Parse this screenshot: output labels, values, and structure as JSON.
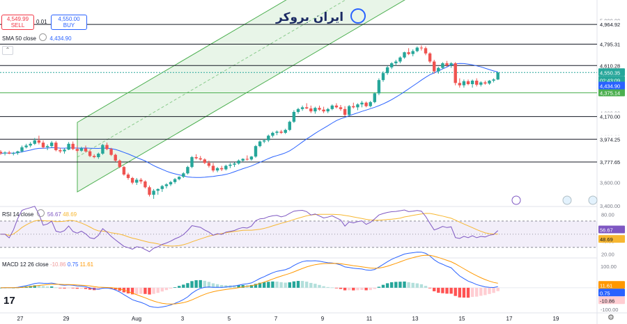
{
  "trade": {
    "sell_price": "4,549.99",
    "sell_label": "SELL",
    "spread": "0.01",
    "buy_price": "4,550.00",
    "buy_label": "BUY"
  },
  "logo_text": "ایران بروکر",
  "sma_legend": {
    "label": "SMA 50 close",
    "value": "4,434.90"
  },
  "rsi_legend": {
    "label": "RSI 14 close",
    "value": "56.67",
    "value2": "48.69"
  },
  "macd_legend": {
    "label": "MACD 12 26 close",
    "hist": "-10.86",
    "macd": "0.75",
    "signal": "11.61"
  },
  "colors": {
    "up": "#26a69a",
    "down": "#ef5350",
    "sma": "#2962ff",
    "channel": "#4caf50",
    "rsi": "#7e57c2",
    "rsi_ma": "#f7b731",
    "macd": "#2962ff",
    "signal": "#ff9800"
  },
  "chart_data": [
    {
      "type": "candlestick",
      "title": "",
      "x_ticks": [
        "27",
        "29",
        "Aug",
        "3",
        "5",
        "7",
        "9",
        "11",
        "13",
        "15",
        "17",
        "19"
      ],
      "y_ticks": [
        3400,
        3600,
        3800,
        4000,
        4200,
        4400,
        4600,
        4800,
        5000
      ],
      "y_tick_labels": [
        "3,400.00",
        "3,600.00",
        "3,800.00",
        "4,000.00",
        "4,200.00",
        "4,400.00",
        "4,600.00",
        "4,800.00",
        "5,000.00"
      ],
      "ylim": [
        3400,
        5080
      ],
      "horizontal_levels": [
        {
          "value": 4964.92,
          "label": "4,964.92"
        },
        {
          "value": 4795.31,
          "label": "4,795.31"
        },
        {
          "value": 4610.28,
          "label": "4,610.28"
        },
        {
          "value": 4170.0,
          "label": "4,170.00"
        },
        {
          "value": 3974.25,
          "label": "3,974.25"
        },
        {
          "value": 3777.65,
          "label": "3,777.65"
        }
      ],
      "support_level": {
        "value": 4375.14,
        "label": "4,375.14"
      },
      "current_price": {
        "value": 4550.35,
        "label": "4,550.35",
        "countdown": "02:43:09"
      },
      "sma_value": {
        "value": 4434.9,
        "label": "4,434.90"
      },
      "candles": [
        {
          "o": 3866,
          "h": 3880,
          "l": 3840,
          "c": 3852
        },
        {
          "o": 3852,
          "h": 3870,
          "l": 3835,
          "c": 3860
        },
        {
          "o": 3860,
          "h": 3875,
          "l": 3845,
          "c": 3850
        },
        {
          "o": 3850,
          "h": 3865,
          "l": 3835,
          "c": 3855
        },
        {
          "o": 3855,
          "h": 3875,
          "l": 3840,
          "c": 3870
        },
        {
          "o": 3870,
          "h": 3920,
          "l": 3860,
          "c": 3905
        },
        {
          "o": 3905,
          "h": 3935,
          "l": 3895,
          "c": 3920
        },
        {
          "o": 3920,
          "h": 3950,
          "l": 3905,
          "c": 3935
        },
        {
          "o": 3935,
          "h": 3985,
          "l": 3925,
          "c": 3965
        },
        {
          "o": 3965,
          "h": 4005,
          "l": 3930,
          "c": 3945
        },
        {
          "o": 3945,
          "h": 3965,
          "l": 3895,
          "c": 3905
        },
        {
          "o": 3905,
          "h": 3930,
          "l": 3880,
          "c": 3915
        },
        {
          "o": 3915,
          "h": 3960,
          "l": 3900,
          "c": 3945
        },
        {
          "o": 3945,
          "h": 3960,
          "l": 3870,
          "c": 3880
        },
        {
          "o": 3880,
          "h": 3900,
          "l": 3855,
          "c": 3870
        },
        {
          "o": 3870,
          "h": 3895,
          "l": 3850,
          "c": 3885
        },
        {
          "o": 3885,
          "h": 3950,
          "l": 3880,
          "c": 3935
        },
        {
          "o": 3935,
          "h": 3955,
          "l": 3880,
          "c": 3890
        },
        {
          "o": 3890,
          "h": 3920,
          "l": 3860,
          "c": 3875
        },
        {
          "o": 3875,
          "h": 3910,
          "l": 3865,
          "c": 3895
        },
        {
          "o": 3895,
          "h": 3920,
          "l": 3860,
          "c": 3870
        },
        {
          "o": 3870,
          "h": 3885,
          "l": 3820,
          "c": 3830
        },
        {
          "o": 3830,
          "h": 3845,
          "l": 3810,
          "c": 3820
        },
        {
          "o": 3820,
          "h": 3860,
          "l": 3805,
          "c": 3850
        },
        {
          "o": 3850,
          "h": 3935,
          "l": 3840,
          "c": 3925
        },
        {
          "o": 3925,
          "h": 3945,
          "l": 3880,
          "c": 3890
        },
        {
          "o": 3890,
          "h": 3900,
          "l": 3830,
          "c": 3840
        },
        {
          "o": 3840,
          "h": 3850,
          "l": 3780,
          "c": 3790
        },
        {
          "o": 3790,
          "h": 3800,
          "l": 3725,
          "c": 3735
        },
        {
          "o": 3735,
          "h": 3745,
          "l": 3660,
          "c": 3670
        },
        {
          "o": 3670,
          "h": 3685,
          "l": 3625,
          "c": 3640
        },
        {
          "o": 3640,
          "h": 3650,
          "l": 3585,
          "c": 3600
        },
        {
          "o": 3600,
          "h": 3640,
          "l": 3580,
          "c": 3625
        },
        {
          "o": 3625,
          "h": 3640,
          "l": 3590,
          "c": 3610
        },
        {
          "o": 3610,
          "h": 3620,
          "l": 3550,
          "c": 3560
        },
        {
          "o": 3560,
          "h": 3575,
          "l": 3480,
          "c": 3495
        },
        {
          "o": 3495,
          "h": 3545,
          "l": 3460,
          "c": 3530
        },
        {
          "o": 3530,
          "h": 3550,
          "l": 3495,
          "c": 3545
        },
        {
          "o": 3545,
          "h": 3580,
          "l": 3520,
          "c": 3570
        },
        {
          "o": 3570,
          "h": 3595,
          "l": 3550,
          "c": 3585
        },
        {
          "o": 3585,
          "h": 3615,
          "l": 3570,
          "c": 3605
        },
        {
          "o": 3605,
          "h": 3640,
          "l": 3590,
          "c": 3630
        },
        {
          "o": 3630,
          "h": 3655,
          "l": 3620,
          "c": 3650
        },
        {
          "o": 3650,
          "h": 3690,
          "l": 3640,
          "c": 3680
        },
        {
          "o": 3680,
          "h": 3745,
          "l": 3670,
          "c": 3735
        },
        {
          "o": 3735,
          "h": 3830,
          "l": 3725,
          "c": 3820
        },
        {
          "o": 3820,
          "h": 3845,
          "l": 3800,
          "c": 3810
        },
        {
          "o": 3810,
          "h": 3830,
          "l": 3790,
          "c": 3800
        },
        {
          "o": 3800,
          "h": 3810,
          "l": 3760,
          "c": 3770
        },
        {
          "o": 3770,
          "h": 3790,
          "l": 3730,
          "c": 3745
        },
        {
          "o": 3745,
          "h": 3770,
          "l": 3690,
          "c": 3705
        },
        {
          "o": 3705,
          "h": 3735,
          "l": 3690,
          "c": 3725
        },
        {
          "o": 3725,
          "h": 3745,
          "l": 3700,
          "c": 3715
        },
        {
          "o": 3715,
          "h": 3755,
          "l": 3705,
          "c": 3745
        },
        {
          "o": 3745,
          "h": 3770,
          "l": 3725,
          "c": 3755
        },
        {
          "o": 3755,
          "h": 3775,
          "l": 3735,
          "c": 3765
        },
        {
          "o": 3765,
          "h": 3800,
          "l": 3755,
          "c": 3790
        },
        {
          "o": 3790,
          "h": 3810,
          "l": 3780,
          "c": 3805
        },
        {
          "o": 3805,
          "h": 3835,
          "l": 3790,
          "c": 3800
        },
        {
          "o": 3800,
          "h": 3830,
          "l": 3790,
          "c": 3825
        },
        {
          "o": 3825,
          "h": 3925,
          "l": 3815,
          "c": 3915
        },
        {
          "o": 3915,
          "h": 3965,
          "l": 3905,
          "c": 3955
        },
        {
          "o": 3955,
          "h": 3975,
          "l": 3940,
          "c": 3965
        },
        {
          "o": 3965,
          "h": 4015,
          "l": 3950,
          "c": 4005
        },
        {
          "o": 4005,
          "h": 4040,
          "l": 3990,
          "c": 4030
        },
        {
          "o": 4030,
          "h": 4050,
          "l": 4010,
          "c": 4040
        },
        {
          "o": 4040,
          "h": 4055,
          "l": 4020,
          "c": 4030
        },
        {
          "o": 4030,
          "h": 4065,
          "l": 4020,
          "c": 4055
        },
        {
          "o": 4055,
          "h": 4135,
          "l": 4045,
          "c": 4125
        },
        {
          "o": 4125,
          "h": 4225,
          "l": 4115,
          "c": 4210
        },
        {
          "o": 4210,
          "h": 4245,
          "l": 4195,
          "c": 4235
        },
        {
          "o": 4235,
          "h": 4265,
          "l": 4220,
          "c": 4250
        },
        {
          "o": 4250,
          "h": 4285,
          "l": 4235,
          "c": 4240
        },
        {
          "o": 4240,
          "h": 4265,
          "l": 4200,
          "c": 4215
        },
        {
          "o": 4215,
          "h": 4255,
          "l": 4195,
          "c": 4245
        },
        {
          "o": 4245,
          "h": 4265,
          "l": 4220,
          "c": 4230
        },
        {
          "o": 4230,
          "h": 4255,
          "l": 4200,
          "c": 4215
        },
        {
          "o": 4215,
          "h": 4245,
          "l": 4200,
          "c": 4235
        },
        {
          "o": 4235,
          "h": 4275,
          "l": 4225,
          "c": 4265
        },
        {
          "o": 4265,
          "h": 4285,
          "l": 4240,
          "c": 4250
        },
        {
          "o": 4250,
          "h": 4270,
          "l": 4220,
          "c": 4235
        },
        {
          "o": 4235,
          "h": 4260,
          "l": 4175,
          "c": 4185
        },
        {
          "o": 4185,
          "h": 4270,
          "l": 4175,
          "c": 4260
        },
        {
          "o": 4260,
          "h": 4290,
          "l": 4240,
          "c": 4250
        },
        {
          "o": 4250,
          "h": 4285,
          "l": 4225,
          "c": 4275
        },
        {
          "o": 4275,
          "h": 4305,
          "l": 4250,
          "c": 4290
        },
        {
          "o": 4290,
          "h": 4300,
          "l": 4250,
          "c": 4260
        },
        {
          "o": 4260,
          "h": 4305,
          "l": 4250,
          "c": 4295
        },
        {
          "o": 4295,
          "h": 4380,
          "l": 4285,
          "c": 4370
        },
        {
          "o": 4370,
          "h": 4500,
          "l": 4355,
          "c": 4485
        },
        {
          "o": 4485,
          "h": 4560,
          "l": 4470,
          "c": 4545
        },
        {
          "o": 4545,
          "h": 4610,
          "l": 4530,
          "c": 4595
        },
        {
          "o": 4595,
          "h": 4640,
          "l": 4580,
          "c": 4630
        },
        {
          "o": 4630,
          "h": 4660,
          "l": 4610,
          "c": 4645
        },
        {
          "o": 4645,
          "h": 4690,
          "l": 4630,
          "c": 4680
        },
        {
          "o": 4680,
          "h": 4730,
          "l": 4670,
          "c": 4725
        },
        {
          "o": 4725,
          "h": 4760,
          "l": 4700,
          "c": 4710
        },
        {
          "o": 4710,
          "h": 4750,
          "l": 4690,
          "c": 4735
        },
        {
          "o": 4735,
          "h": 4775,
          "l": 4725,
          "c": 4765
        },
        {
          "o": 4765,
          "h": 4785,
          "l": 4740,
          "c": 4760
        },
        {
          "o": 4760,
          "h": 4775,
          "l": 4700,
          "c": 4715
        },
        {
          "o": 4715,
          "h": 4725,
          "l": 4630,
          "c": 4645
        },
        {
          "o": 4645,
          "h": 4660,
          "l": 4540,
          "c": 4560
        },
        {
          "o": 4560,
          "h": 4600,
          "l": 4540,
          "c": 4590
        },
        {
          "o": 4590,
          "h": 4640,
          "l": 4580,
          "c": 4630
        },
        {
          "o": 4630,
          "h": 4650,
          "l": 4600,
          "c": 4615
        },
        {
          "o": 4615,
          "h": 4640,
          "l": 4590,
          "c": 4630
        },
        {
          "o": 4630,
          "h": 4640,
          "l": 4440,
          "c": 4460
        },
        {
          "o": 4460,
          "h": 4500,
          "l": 4420,
          "c": 4440
        },
        {
          "o": 4440,
          "h": 4490,
          "l": 4420,
          "c": 4475
        },
        {
          "o": 4475,
          "h": 4490,
          "l": 4440,
          "c": 4450
        },
        {
          "o": 4450,
          "h": 4490,
          "l": 4420,
          "c": 4480
        },
        {
          "o": 4480,
          "h": 4500,
          "l": 4430,
          "c": 4445
        },
        {
          "o": 4445,
          "h": 4475,
          "l": 4430,
          "c": 4465
        },
        {
          "o": 4465,
          "h": 4480,
          "l": 4445,
          "c": 4455
        },
        {
          "o": 4455,
          "h": 4485,
          "l": 4445,
          "c": 4480
        },
        {
          "o": 4480,
          "h": 4500,
          "l": 4465,
          "c": 4490
        },
        {
          "o": 4490,
          "h": 4555,
          "l": 4485,
          "c": 4550
        }
      ]
    },
    {
      "type": "line",
      "title": "RSI 14 close",
      "y_ticks": [
        20,
        40,
        60,
        80
      ],
      "ylim": [
        15,
        90
      ],
      "bands": [
        30,
        50,
        70
      ],
      "series": [
        {
          "name": "RSI",
          "last": 56.67
        },
        {
          "name": "RSI MA",
          "last": 48.69
        }
      ]
    },
    {
      "type": "histogram_line",
      "title": "MACD 12 26 close",
      "y_ticks": [
        -100,
        0,
        100
      ],
      "ylim": [
        -110,
        135
      ],
      "series": [
        {
          "name": "MACD",
          "last": 0.75
        },
        {
          "name": "Signal",
          "last": 11.61
        },
        {
          "name": "Histogram",
          "last": -10.86
        }
      ]
    }
  ]
}
